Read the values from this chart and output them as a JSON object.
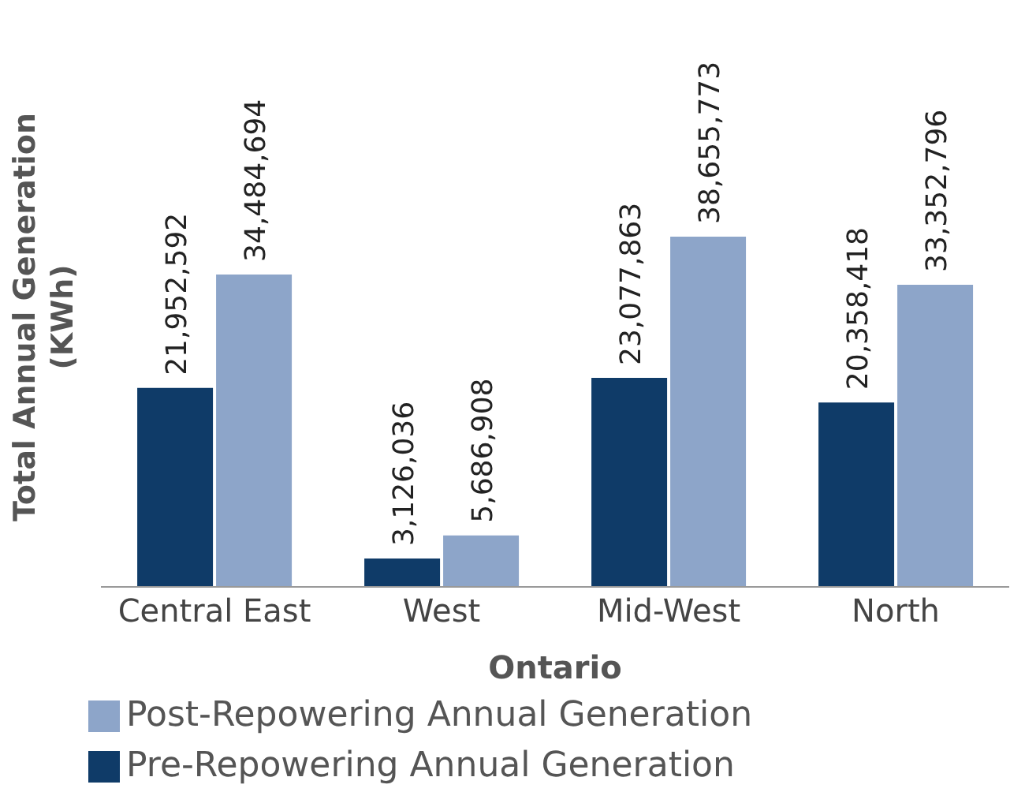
{
  "chart_data": {
    "type": "bar",
    "xlabel": "Ontario",
    "ylabel": "Total Annual Generation (KWh)",
    "categories": [
      "Central East",
      "West",
      "Mid-West",
      "North"
    ],
    "series": [
      {
        "name": "Pre-Repowering Annual Generation",
        "color": "#0f3b68",
        "values": [
          21952592,
          3126036,
          23077863,
          20358418
        ],
        "value_labels": [
          "21,952,592",
          "3,126,036",
          "23,077,863",
          "20,358,418"
        ]
      },
      {
        "name": "Post-Repowering Annual Generation",
        "color": "#8da5c9",
        "values": [
          34484694,
          5686908,
          38655773,
          33352796
        ],
        "value_labels": [
          "34,484,694",
          "5,686,908",
          "38,655,773",
          "33,352,796"
        ]
      }
    ],
    "legend": "bottom",
    "grid": false
  }
}
